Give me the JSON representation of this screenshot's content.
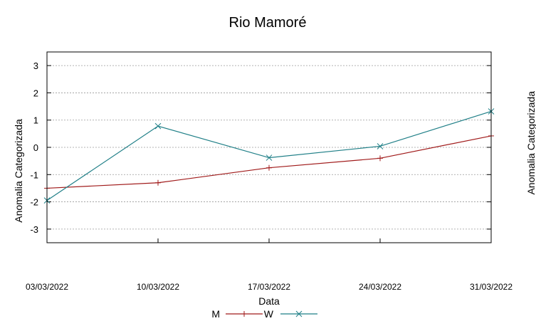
{
  "chart_data": {
    "type": "line",
    "title": "Rio Mamoré",
    "xlabel": "Data",
    "ylabel": "Anomalia Categorizada",
    "ylabel_right": "Anomalia Categorizada",
    "categories": [
      "03/03/2022",
      "10/03/2022",
      "17/03/2022",
      "24/03/2022",
      "31/03/2022"
    ],
    "ylim": [
      -3.5,
      3.5
    ],
    "yticks": [
      3,
      2,
      1,
      0,
      -1,
      -2,
      -3
    ],
    "ytick_labels": [
      "3",
      "2",
      "1",
      "0",
      "-1",
      "-2",
      "-3"
    ],
    "grid": true,
    "legend_position": "bottom-center",
    "series": [
      {
        "name": "M",
        "color": "#a01a1a",
        "marker": "plus",
        "values": [
          -1.5,
          -1.3,
          -0.75,
          -0.4,
          0.42
        ]
      },
      {
        "name": "W",
        "color": "#1f7f87",
        "marker": "cross",
        "values": [
          -1.95,
          0.78,
          -0.38,
          0.04,
          1.32
        ]
      }
    ]
  }
}
